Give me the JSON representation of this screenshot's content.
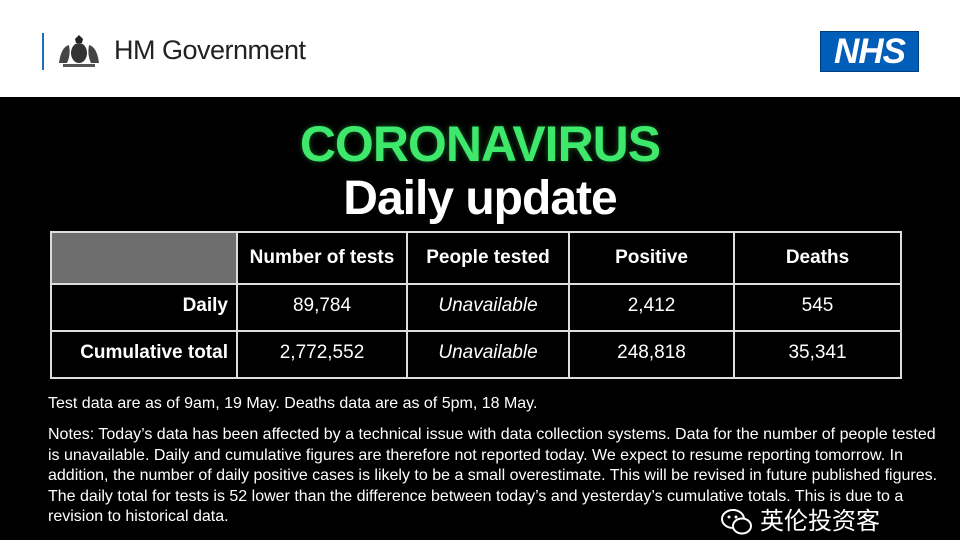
{
  "header": {
    "government": "HM Government",
    "nhs": "NHS",
    "colors": {
      "nhs_blue": "#005eb8"
    }
  },
  "title": {
    "line1": "CORONAVIRUS",
    "line2": "Daily update",
    "colors": {
      "line1": "#3de86b"
    }
  },
  "table": {
    "columns": [
      "",
      "Number of tests",
      "People tested",
      "Positive",
      "Deaths"
    ],
    "rows": [
      {
        "label": "Daily",
        "values": [
          "89,784",
          "Unavailable",
          "2,412",
          "545"
        ]
      },
      {
        "label": "Cumulative total",
        "values": [
          "2,772,552",
          "Unavailable",
          "248,818",
          "35,341"
        ]
      }
    ]
  },
  "source_note": "Test data are as of 9am, 19 May. Deaths data are as of 5pm, 18 May.",
  "notes": "Notes: Today’s data has been affected by a technical issue with data collection systems. Data for the number of people tested is unavailable. Daily and cumulative figures are therefore not reported today. We expect to resume reporting tomorrow. In addition, the number of daily positive cases is likely to be a small overestimate. This will be revised in future published figures. The daily total for tests is 52 lower than the difference between today’s and yesterday’s cumulative totals. This is due to a revision to historical data.",
  "watermark": "英伦投资客"
}
